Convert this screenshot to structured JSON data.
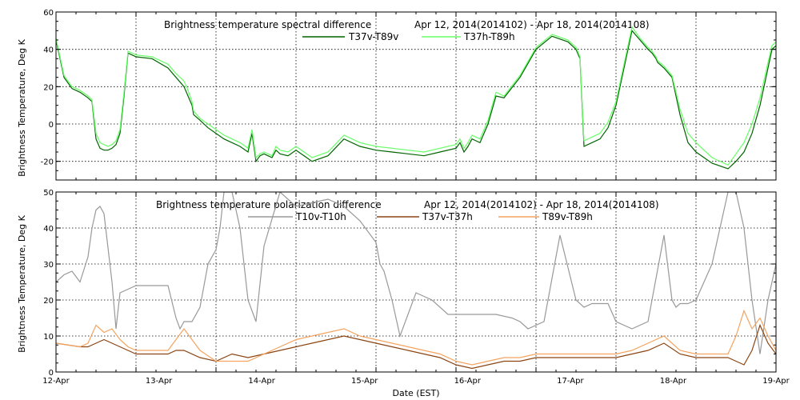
{
  "chart_data": [
    {
      "type": "line",
      "title": "Brightness temperature spectral difference",
      "subtitle": "Apr 12, 2014(2014102) - Apr 18, 2014(2014108)",
      "xlabel": "",
      "ylabel": "Brightness Temperature, Deg K",
      "ylim": [
        -30,
        60
      ],
      "yticks": [
        -20,
        0,
        20,
        40,
        60
      ],
      "grid": true,
      "legend_position": "top",
      "series": [
        {
          "name": "T37v-T89v",
          "color": "#006400",
          "x": [
            0,
            0.05,
            0.1,
            0.2,
            0.3,
            0.4,
            0.45,
            0.5,
            0.55,
            0.6,
            0.65,
            0.7,
            0.75,
            0.8,
            0.85,
            0.9,
            1.0,
            1.2,
            1.4,
            1.5,
            1.6,
            1.65,
            1.7,
            1.72,
            1.8,
            1.9,
            2.0,
            2.1,
            2.2,
            2.3,
            2.4,
            2.45,
            2.5,
            2.55,
            2.6,
            2.65,
            2.7,
            2.75,
            2.8,
            2.9,
            3.0,
            3.2,
            3.4,
            3.6,
            3.8,
            4.0,
            4.2,
            4.4,
            4.6,
            4.8,
            5.0,
            5.05,
            5.1,
            5.15,
            5.2,
            5.25,
            5.3,
            5.4,
            5.5,
            5.6,
            5.8,
            6.0,
            6.2,
            6.4,
            6.5,
            6.55,
            6.6,
            6.7,
            6.8,
            6.9,
            7.0,
            7.1,
            7.2,
            7.3,
            7.4,
            7.45,
            7.5,
            7.52,
            7.6,
            7.7,
            7.8,
            7.9,
            8.0,
            8.2,
            8.4,
            8.45,
            8.5,
            8.6,
            8.7,
            8.8,
            8.9,
            8.95,
            9.0
          ],
          "values": [
            45,
            35,
            25,
            19,
            17,
            14,
            12,
            -8,
            -13,
            -14,
            -14,
            -13,
            -11,
            -5,
            15,
            38,
            36,
            35,
            30,
            25,
            20,
            15,
            10,
            5,
            2,
            -2,
            -5,
            -8,
            -10,
            -12,
            -15,
            -5,
            -20,
            -17,
            -16,
            -17,
            -18,
            -14,
            -16,
            -17,
            -14,
            -20,
            -17,
            -8,
            -12,
            -14,
            -15,
            -16,
            -17,
            -15,
            -13,
            -10,
            -15,
            -12,
            -8,
            -9,
            -10,
            0,
            15,
            14,
            25,
            40,
            47,
            44,
            40,
            35,
            -12,
            -10,
            -8,
            -2,
            10,
            30,
            50,
            45,
            40,
            38,
            35,
            33,
            30,
            25,
            5,
            -10,
            -15,
            -21,
            -24,
            -22,
            -20,
            -15,
            -5,
            10,
            30,
            40,
            42
          ]
        },
        {
          "name": "T37h-T89h",
          "color": "#66ff66",
          "x": [
            0,
            0.05,
            0.1,
            0.2,
            0.3,
            0.4,
            0.45,
            0.5,
            0.55,
            0.6,
            0.65,
            0.7,
            0.75,
            0.8,
            0.85,
            0.9,
            1.0,
            1.2,
            1.4,
            1.5,
            1.6,
            1.65,
            1.7,
            1.72,
            1.8,
            1.9,
            2.0,
            2.1,
            2.2,
            2.3,
            2.4,
            2.45,
            2.5,
            2.55,
            2.6,
            2.65,
            2.7,
            2.75,
            2.8,
            2.9,
            3.0,
            3.2,
            3.4,
            3.6,
            3.8,
            4.0,
            4.2,
            4.4,
            4.6,
            4.8,
            5.0,
            5.05,
            5.1,
            5.15,
            5.2,
            5.25,
            5.3,
            5.4,
            5.5,
            5.6,
            5.8,
            6.0,
            6.2,
            6.4,
            6.5,
            6.55,
            6.6,
            6.7,
            6.8,
            6.9,
            7.0,
            7.1,
            7.2,
            7.3,
            7.4,
            7.45,
            7.5,
            7.52,
            7.6,
            7.7,
            7.8,
            7.9,
            8.0,
            8.2,
            8.4,
            8.45,
            8.5,
            8.6,
            8.7,
            8.8,
            8.9,
            8.95,
            9.0
          ],
          "values": [
            46,
            36,
            26,
            20,
            18,
            15,
            13,
            -5,
            -10,
            -11,
            -12,
            -11,
            -9,
            -3,
            17,
            39,
            37,
            36,
            32,
            27,
            23,
            18,
            12,
            7,
            3,
            0,
            -3,
            -6,
            -8,
            -10,
            -13,
            -3,
            -18,
            -16,
            -15,
            -16,
            -17,
            -12,
            -14,
            -15,
            -12,
            -18,
            -15,
            -6,
            -10,
            -12,
            -13,
            -14,
            -15,
            -13,
            -11,
            -8,
            -13,
            -10,
            -6,
            -7,
            -8,
            2,
            17,
            15,
            26,
            41,
            48,
            45,
            41,
            36,
            -9,
            -7,
            -5,
            1,
            12,
            32,
            52,
            46,
            41,
            39,
            36,
            34,
            31,
            26,
            8,
            -5,
            -10,
            -18,
            -22,
            -19,
            -16,
            -10,
            0,
            14,
            33,
            42,
            44
          ]
        }
      ]
    },
    {
      "type": "line",
      "title": "Brightness temperature polarization difference",
      "subtitle": "Apr 12, 2014(2014102) - Apr 18, 2014(2014108)",
      "xlabel": "Date (EST)",
      "ylabel": "Brightness Temperature, Deg K",
      "ylim": [
        0,
        50
      ],
      "yticks": [
        0,
        10,
        20,
        30,
        40,
        50
      ],
      "grid": true,
      "legend_position": "top",
      "x_tick_labels": [
        "12-Apr",
        "13-Apr",
        "14-Apr",
        "15-Apr",
        "16-Apr",
        "17-Apr",
        "18-Apr",
        "19-Apr"
      ],
      "series": [
        {
          "name": "T10v-T10h",
          "color": "#999999",
          "x": [
            0,
            0.1,
            0.2,
            0.3,
            0.4,
            0.45,
            0.5,
            0.55,
            0.6,
            0.7,
            0.75,
            0.8,
            0.9,
            1.0,
            1.2,
            1.4,
            1.5,
            1.55,
            1.6,
            1.7,
            1.8,
            1.9,
            2.0,
            2.05,
            2.1,
            2.2,
            2.3,
            2.4,
            2.5,
            2.6,
            2.8,
            3.0,
            3.2,
            3.4,
            3.6,
            3.8,
            4.0,
            4.05,
            4.1,
            4.2,
            4.3,
            4.5,
            4.7,
            4.9,
            5.1,
            5.3,
            5.5,
            5.7,
            5.8,
            5.9,
            6.1,
            6.3,
            6.5,
            6.6,
            6.7,
            6.8,
            6.9,
            7.0,
            7.2,
            7.4,
            7.6,
            7.7,
            7.75,
            7.8,
            7.9,
            8.0,
            8.2,
            8.4,
            8.5,
            8.6,
            8.7,
            8.8,
            8.9,
            9.0
          ],
          "values": [
            25,
            27,
            28,
            25,
            32,
            40,
            45,
            46,
            44,
            25,
            12,
            22,
            23,
            24,
            24,
            24,
            15,
            12,
            14,
            14,
            18,
            30,
            34,
            40,
            50,
            50,
            40,
            20,
            14,
            35,
            50,
            46,
            47,
            48,
            46,
            42,
            36,
            30,
            28,
            20,
            10,
            22,
            20,
            16,
            16,
            16,
            16,
            15,
            14,
            12,
            14,
            38,
            20,
            18,
            19,
            19,
            19,
            14,
            12,
            14,
            38,
            20,
            18,
            19,
            19,
            20,
            30,
            50,
            50,
            40,
            20,
            5,
            20,
            30
          ]
        },
        {
          "name": "T37v-T37h",
          "color": "#8b4513",
          "x": [
            0,
            0.3,
            0.4,
            0.5,
            0.6,
            0.7,
            0.8,
            0.9,
            1.0,
            1.2,
            1.4,
            1.5,
            1.6,
            1.8,
            2.0,
            2.2,
            2.4,
            2.6,
            2.8,
            3.0,
            3.2,
            3.4,
            3.6,
            3.8,
            4.0,
            4.2,
            4.4,
            4.6,
            4.8,
            5.0,
            5.2,
            5.4,
            5.6,
            5.8,
            6.0,
            6.2,
            6.4,
            6.6,
            6.8,
            7.0,
            7.2,
            7.4,
            7.6,
            7.8,
            8.0,
            8.2,
            8.4,
            8.5,
            8.6,
            8.7,
            8.8,
            8.9,
            9.0
          ],
          "values": [
            8,
            7,
            7,
            8,
            9,
            8,
            7,
            6,
            5,
            5,
            5,
            6,
            6,
            4,
            3,
            5,
            4,
            5,
            6,
            7,
            8,
            9,
            10,
            9,
            8,
            7,
            6,
            5,
            4,
            2,
            1,
            2,
            3,
            3,
            4,
            4,
            4,
            4,
            4,
            4,
            5,
            6,
            8,
            5,
            4,
            4,
            4,
            3,
            2,
            6,
            13,
            8,
            5
          ]
        },
        {
          "name": "T89v-T89h",
          "color": "#f4a460",
          "x": [
            0,
            0.3,
            0.4,
            0.5,
            0.6,
            0.7,
            0.8,
            0.9,
            1.0,
            1.2,
            1.4,
            1.5,
            1.6,
            1.8,
            2.0,
            2.2,
            2.4,
            2.6,
            2.8,
            3.0,
            3.2,
            3.4,
            3.6,
            3.8,
            4.0,
            4.2,
            4.4,
            4.6,
            4.8,
            5.0,
            5.2,
            5.4,
            5.6,
            5.8,
            6.0,
            6.2,
            6.4,
            6.6,
            6.8,
            7.0,
            7.2,
            7.4,
            7.6,
            7.8,
            8.0,
            8.2,
            8.4,
            8.5,
            8.6,
            8.7,
            8.8,
            8.9,
            9.0
          ],
          "values": [
            8,
            7,
            8,
            13,
            11,
            12,
            9,
            7,
            6,
            6,
            6,
            9,
            12,
            6,
            3,
            3,
            3,
            5,
            7,
            9,
            10,
            11,
            12,
            10,
            9,
            8,
            7,
            6,
            5,
            3,
            2,
            3,
            4,
            4,
            5,
            5,
            5,
            5,
            5,
            5,
            6,
            8,
            10,
            6,
            5,
            5,
            5,
            10,
            17,
            12,
            15,
            10,
            6
          ]
        }
      ]
    }
  ]
}
